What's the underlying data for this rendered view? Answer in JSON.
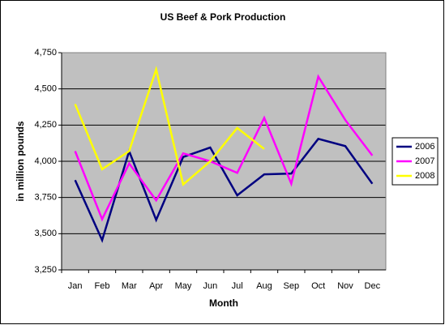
{
  "chart_data": {
    "type": "line",
    "title": "US Beef & Pork Production",
    "x_label": "Month",
    "y_label": "in million pounds",
    "categories": [
      "Jan",
      "Feb",
      "Mar",
      "Apr",
      "May",
      "Jun",
      "Jul",
      "Aug",
      "Sep",
      "Oct",
      "Nov",
      "Dec"
    ],
    "series": [
      {
        "name": "2006",
        "color": "#000080",
        "values": [
          3870,
          3455,
          4070,
          3595,
          4030,
          4095,
          3765,
          3910,
          3915,
          4155,
          4105,
          3845
        ]
      },
      {
        "name": "2007",
        "color": "#ff00ff",
        "values": [
          4070,
          3600,
          3985,
          3730,
          4055,
          4000,
          3920,
          4300,
          3845,
          4585,
          4285,
          4040
        ]
      },
      {
        "name": "2008",
        "color": "#ffff00",
        "values": [
          4395,
          3945,
          4070,
          4635,
          3840,
          4000,
          4230,
          4085,
          null,
          null,
          null,
          null
        ]
      }
    ],
    "ylim": [
      3250,
      4750
    ],
    "yticks": [
      {
        "value": 3250,
        "label": "3,250"
      },
      {
        "value": 3500,
        "label": "3,500"
      },
      {
        "value": 3750,
        "label": "3,750"
      },
      {
        "value": 4000,
        "label": "4,000"
      },
      {
        "value": 4250,
        "label": "4,250"
      },
      {
        "value": 4500,
        "label": "4,500"
      },
      {
        "value": 4750,
        "label": "4,750"
      }
    ],
    "grid": true,
    "legend": "right"
  }
}
